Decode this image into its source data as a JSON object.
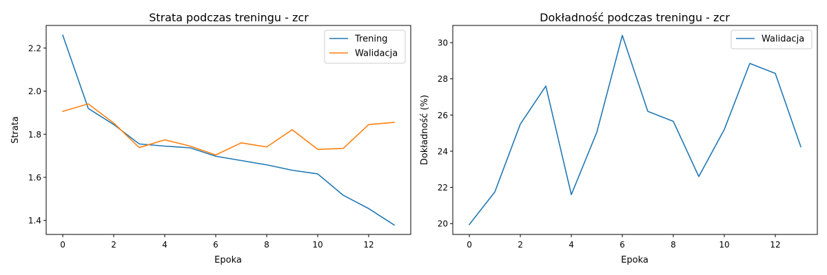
{
  "colors": {
    "training": "#1f77b4",
    "validation": "#ff7f0e",
    "single_series": "#1f77b4",
    "axes": "#000000",
    "legend_border": "#cccccc"
  },
  "chart_data": [
    {
      "type": "line",
      "title": "Strata podczas treningu - zcr",
      "xlabel": "Epoka",
      "ylabel": "Strata",
      "xlim": [
        -0.65,
        13.65
      ],
      "ylim": [
        1.335,
        2.305
      ],
      "xticks": [
        0,
        2,
        4,
        6,
        8,
        10,
        12
      ],
      "xtick_labels": [
        "0",
        "2",
        "4",
        "6",
        "8",
        "10",
        "12"
      ],
      "yticks": [
        1.4,
        1.6,
        1.8,
        2.0,
        2.2
      ],
      "ytick_labels": [
        "1.4",
        "1.6",
        "1.8",
        "2.0",
        "2.2"
      ],
      "grid": false,
      "legend": "top-right",
      "x": [
        0,
        1,
        2,
        3,
        4,
        5,
        6,
        7,
        8,
        9,
        10,
        11,
        12,
        13
      ],
      "series": [
        {
          "name": "Trening",
          "color": "#1f77b4",
          "values": [
            2.26,
            1.92,
            1.845,
            1.755,
            1.745,
            1.737,
            1.698,
            1.678,
            1.658,
            1.633,
            1.616,
            1.517,
            1.455,
            1.379
          ]
        },
        {
          "name": "Walidacja",
          "color": "#ff7f0e",
          "values": [
            1.906,
            1.941,
            1.852,
            1.738,
            1.774,
            1.745,
            1.704,
            1.76,
            1.741,
            1.821,
            1.73,
            1.734,
            1.845,
            1.855
          ]
        }
      ]
    },
    {
      "type": "line",
      "title": "Dokładność podczas treningu - zcr",
      "xlabel": "Epoka",
      "ylabel": "Dokładność (%)",
      "xlim": [
        -0.65,
        13.65
      ],
      "ylim": [
        19.4,
        30.95
      ],
      "xticks": [
        0,
        2,
        4,
        6,
        8,
        10,
        12
      ],
      "xtick_labels": [
        "0",
        "2",
        "4",
        "6",
        "8",
        "10",
        "12"
      ],
      "yticks": [
        20,
        22,
        24,
        26,
        28,
        30
      ],
      "ytick_labels": [
        "20",
        "22",
        "24",
        "26",
        "28",
        "30"
      ],
      "grid": false,
      "legend": "top-right",
      "x": [
        0,
        1,
        2,
        3,
        4,
        5,
        6,
        7,
        8,
        9,
        10,
        11,
        12,
        13
      ],
      "series": [
        {
          "name": "Walidacja",
          "color": "#1f77b4",
          "values": [
            19.95,
            21.75,
            25.5,
            27.6,
            21.6,
            25.05,
            30.4,
            26.2,
            25.65,
            22.6,
            25.2,
            28.85,
            28.3,
            24.25
          ]
        }
      ]
    }
  ]
}
